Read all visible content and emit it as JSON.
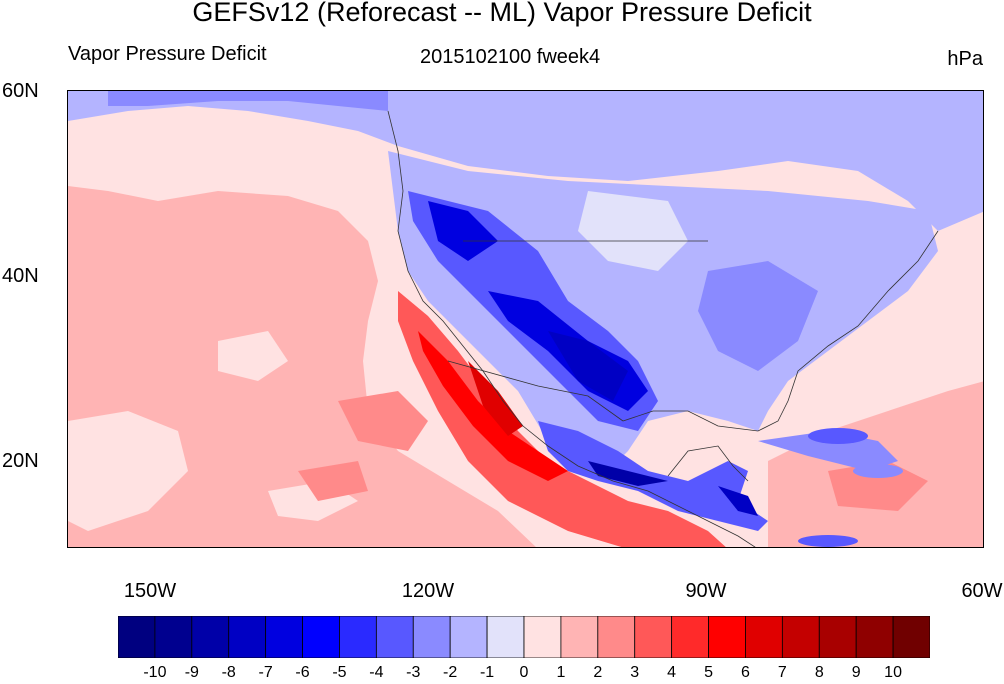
{
  "title": "GEFSv12 (Reforecast -- ML) Vapor Pressure Deficit",
  "subtitle_left": "Vapor Pressure Deficit",
  "subtitle_center": "2015102100 fweek4",
  "units": "hPa",
  "lat_labels": [
    "60N",
    "40N",
    "20N"
  ],
  "lon_labels": [
    "150W",
    "120W",
    "90W",
    "60W"
  ],
  "colorbar": {
    "ticks": [
      "-10",
      "-9",
      "-8",
      "-7",
      "-6",
      "-5",
      "-4",
      "-3",
      "-2",
      "-1",
      "0",
      "1",
      "2",
      "3",
      "4",
      "5",
      "6",
      "7",
      "8",
      "9",
      "10"
    ],
    "colors": [
      "#000080",
      "#00008f",
      "#0000a8",
      "#0000c4",
      "#0000e0",
      "#0000ff",
      "#2a2aff",
      "#5858ff",
      "#8a8aff",
      "#b4b4ff",
      "#e2e2fa",
      "#ffe2e2",
      "#ffb4b4",
      "#ff8a8a",
      "#ff5858",
      "#ff2a2a",
      "#ff0000",
      "#e00000",
      "#c40000",
      "#a80000",
      "#8f0000",
      "#700000"
    ]
  },
  "map": {
    "region": "North America and eastern Pacific",
    "lat_range": [
      10,
      60
    ],
    "lon_range": [
      -160,
      -60
    ]
  }
}
